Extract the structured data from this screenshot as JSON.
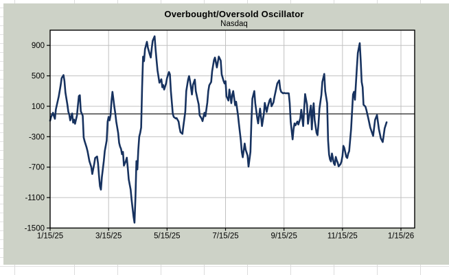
{
  "chart": {
    "title": "Overbought/Oversold Oscillator",
    "subtitle": "Nasdaq"
  },
  "colors": {
    "chart_background": "#cdd2c7",
    "plot_background": "#ffffff",
    "gridline": "#c0c0c0",
    "zero_line": "#333333",
    "series_line": "#17325f",
    "plot_border": "#000000",
    "text": "#000000",
    "sheet_gridline": "#dcdcdc"
  },
  "chart_data": {
    "type": "line",
    "title": "Overbought/Oversold Oscillator",
    "subtitle": "Nasdaq",
    "x_tick_labels": [
      "1/15/25",
      "3/15/25",
      "5/15/25",
      "7/15/25",
      "9/15/25",
      "11/15/25",
      "1/15/26"
    ],
    "x_tick_days": [
      0,
      61,
      122,
      183,
      244,
      305,
      366
    ],
    "xlim_days": [
      0,
      380
    ],
    "y_ticks": [
      900,
      500,
      100,
      -300,
      -700,
      -1100,
      -1500
    ],
    "ylim": [
      -1500,
      1100
    ],
    "zero_line": 0,
    "grid": true,
    "legend": "none",
    "series": [
      {
        "name": "oscillator",
        "color": "#17325f",
        "points": [
          [
            0,
            -90
          ],
          [
            1,
            -40
          ],
          [
            3,
            15
          ],
          [
            4,
            -30
          ],
          [
            5,
            -65
          ],
          [
            6,
            60
          ],
          [
            9,
            230
          ],
          [
            11,
            380
          ],
          [
            12,
            470
          ],
          [
            14,
            510
          ],
          [
            15,
            430
          ],
          [
            16,
            280
          ],
          [
            18,
            125
          ],
          [
            19,
            30
          ],
          [
            20,
            -10
          ],
          [
            21,
            -85
          ],
          [
            23,
            5
          ],
          [
            24,
            -115
          ],
          [
            25,
            -75
          ],
          [
            26,
            -130
          ],
          [
            28,
            -20
          ],
          [
            29,
            110
          ],
          [
            30,
            235
          ],
          [
            31,
            245
          ],
          [
            32,
            35
          ],
          [
            34,
            -25
          ],
          [
            35,
            -310
          ],
          [
            36,
            -360
          ],
          [
            38,
            -440
          ],
          [
            39,
            -490
          ],
          [
            41,
            -620
          ],
          [
            43,
            -700
          ],
          [
            44,
            -790
          ],
          [
            46,
            -660
          ],
          [
            47,
            -580
          ],
          [
            49,
            -560
          ],
          [
            50,
            -650
          ],
          [
            51,
            -815
          ],
          [
            52,
            -950
          ],
          [
            53,
            -995
          ],
          [
            54,
            -830
          ],
          [
            56,
            -620
          ],
          [
            57,
            -490
          ],
          [
            59,
            -350
          ],
          [
            60,
            -100
          ],
          [
            61,
            -40
          ],
          [
            62,
            -85
          ],
          [
            63,
            -20
          ],
          [
            64,
            170
          ],
          [
            65,
            290
          ],
          [
            66,
            200
          ],
          [
            67,
            95
          ],
          [
            68,
            10
          ],
          [
            69,
            -100
          ],
          [
            71,
            -250
          ],
          [
            72,
            -380
          ],
          [
            73,
            -430
          ],
          [
            74,
            -460
          ],
          [
            75,
            -530
          ],
          [
            76,
            -500
          ],
          [
            77,
            -680
          ],
          [
            79,
            -620
          ],
          [
            80,
            -575
          ],
          [
            81,
            -710
          ],
          [
            82,
            -860
          ],
          [
            84,
            -995
          ],
          [
            85,
            -1130
          ],
          [
            86,
            -1240
          ],
          [
            87,
            -1350
          ],
          [
            88,
            -1430
          ],
          [
            89,
            -1100
          ],
          [
            90,
            -620
          ],
          [
            91,
            -730
          ],
          [
            92,
            -480
          ],
          [
            93,
            -300
          ],
          [
            94,
            -250
          ],
          [
            95,
            -180
          ],
          [
            96,
            350
          ],
          [
            97,
            753
          ],
          [
            98,
            693
          ],
          [
            99,
            850
          ],
          [
            101,
            948
          ],
          [
            102,
            870
          ],
          [
            104,
            780
          ],
          [
            105,
            740
          ],
          [
            106,
            860
          ],
          [
            107,
            960
          ],
          [
            109,
            1020
          ],
          [
            110,
            850
          ],
          [
            111,
            708
          ],
          [
            112,
            574
          ],
          [
            114,
            410
          ],
          [
            116,
            455
          ],
          [
            117,
            350
          ],
          [
            118,
            380
          ],
          [
            119,
            320
          ],
          [
            121,
            400
          ],
          [
            122,
            470
          ],
          [
            124,
            550
          ],
          [
            125,
            520
          ],
          [
            126,
            300
          ],
          [
            128,
            0
          ],
          [
            129,
            -40
          ],
          [
            131,
            -60
          ],
          [
            132,
            -55
          ],
          [
            134,
            -100
          ],
          [
            135,
            -180
          ],
          [
            136,
            -240
          ],
          [
            138,
            -263
          ],
          [
            139,
            -160
          ],
          [
            141,
            30
          ],
          [
            142,
            300
          ],
          [
            144,
            450
          ],
          [
            145,
            497
          ],
          [
            146,
            430
          ],
          [
            148,
            255
          ],
          [
            149,
            380
          ],
          [
            151,
            450
          ],
          [
            152,
            300
          ],
          [
            154,
            180
          ],
          [
            155,
            125
          ],
          [
            156,
            -20
          ],
          [
            158,
            -60
          ],
          [
            159,
            -95
          ],
          [
            161,
            15
          ],
          [
            162,
            -30
          ],
          [
            164,
            150
          ],
          [
            165,
            300
          ],
          [
            166,
            375
          ],
          [
            168,
            420
          ],
          [
            169,
            560
          ],
          [
            171,
            708
          ],
          [
            172,
            740
          ],
          [
            174,
            610
          ],
          [
            175,
            680
          ],
          [
            176,
            753
          ],
          [
            178,
            700
          ],
          [
            179,
            520
          ],
          [
            181,
            430
          ],
          [
            182,
            400
          ],
          [
            183,
            430
          ],
          [
            184,
            230
          ],
          [
            186,
            175
          ],
          [
            187,
            320
          ],
          [
            189,
            140
          ],
          [
            190,
            250
          ],
          [
            191,
            300
          ],
          [
            193,
            115
          ],
          [
            194,
            160
          ],
          [
            196,
            -20
          ],
          [
            197,
            -130
          ],
          [
            199,
            -350
          ],
          [
            200,
            -502
          ],
          [
            201,
            -570
          ],
          [
            203,
            -390
          ],
          [
            204,
            -470
          ],
          [
            206,
            -547
          ],
          [
            207,
            -693
          ],
          [
            209,
            -500
          ],
          [
            210,
            -100
          ],
          [
            211,
            200
          ],
          [
            213,
            300
          ],
          [
            214,
            140
          ],
          [
            216,
            -50
          ],
          [
            217,
            -125
          ],
          [
            219,
            70
          ],
          [
            220,
            -40
          ],
          [
            221,
            -160
          ],
          [
            223,
            0
          ],
          [
            224,
            145
          ],
          [
            226,
            25
          ],
          [
            227,
            90
          ],
          [
            229,
            180
          ],
          [
            230,
            200
          ],
          [
            231,
            100
          ],
          [
            233,
            150
          ],
          [
            234,
            220
          ],
          [
            236,
            340
          ],
          [
            237,
            400
          ],
          [
            239,
            440
          ],
          [
            240,
            330
          ],
          [
            241,
            290
          ],
          [
            243,
            270
          ],
          [
            244,
            275
          ],
          [
            246,
            270
          ],
          [
            247,
            272
          ],
          [
            249,
            270
          ],
          [
            250,
            140
          ],
          [
            251,
            -100
          ],
          [
            253,
            -335
          ],
          [
            254,
            -200
          ],
          [
            255,
            -125
          ],
          [
            256,
            -150
          ],
          [
            258,
            -100
          ],
          [
            259,
            -140
          ],
          [
            261,
            -60
          ],
          [
            262,
            55
          ],
          [
            264,
            -160
          ],
          [
            265,
            60
          ],
          [
            266,
            260
          ],
          [
            268,
            120
          ],
          [
            269,
            -130
          ],
          [
            271,
            30
          ],
          [
            272,
            110
          ],
          [
            273,
            -205
          ],
          [
            274,
            30
          ],
          [
            275,
            140
          ],
          [
            276,
            -80
          ],
          [
            278,
            -250
          ],
          [
            279,
            -280
          ],
          [
            280,
            -130
          ],
          [
            281,
            70
          ],
          [
            283,
            250
          ],
          [
            284,
            420
          ],
          [
            286,
            525
          ],
          [
            287,
            300
          ],
          [
            289,
            140
          ],
          [
            290,
            -350
          ],
          [
            291,
            -535
          ],
          [
            292,
            -600
          ],
          [
            293,
            -625
          ],
          [
            294,
            -520
          ],
          [
            296,
            -650
          ],
          [
            297,
            -672
          ],
          [
            298,
            -565
          ],
          [
            299,
            -610
          ],
          [
            300,
            -640
          ],
          [
            301,
            -690
          ],
          [
            303,
            -660
          ],
          [
            304,
            -625
          ],
          [
            305,
            -555
          ],
          [
            306,
            -420
          ],
          [
            307,
            -450
          ],
          [
            309,
            -565
          ],
          [
            310,
            -580
          ],
          [
            311,
            -520
          ],
          [
            312,
            -490
          ],
          [
            314,
            -200
          ],
          [
            316,
            255
          ],
          [
            317,
            290
          ],
          [
            318,
            185
          ],
          [
            319,
            395
          ],
          [
            320,
            605
          ],
          [
            321,
            800
          ],
          [
            323,
            930
          ],
          [
            324,
            700
          ],
          [
            325,
            420
          ],
          [
            326,
            350
          ],
          [
            327,
            120
          ],
          [
            329,
            95
          ],
          [
            330,
            50
          ],
          [
            332,
            -60
          ],
          [
            334,
            -180
          ],
          [
            337,
            -290
          ],
          [
            339,
            -80
          ],
          [
            341,
            -15
          ],
          [
            343,
            -200
          ],
          [
            345,
            -320
          ],
          [
            347,
            -370
          ],
          [
            349,
            -190
          ],
          [
            351,
            -110
          ]
        ]
      }
    ]
  }
}
